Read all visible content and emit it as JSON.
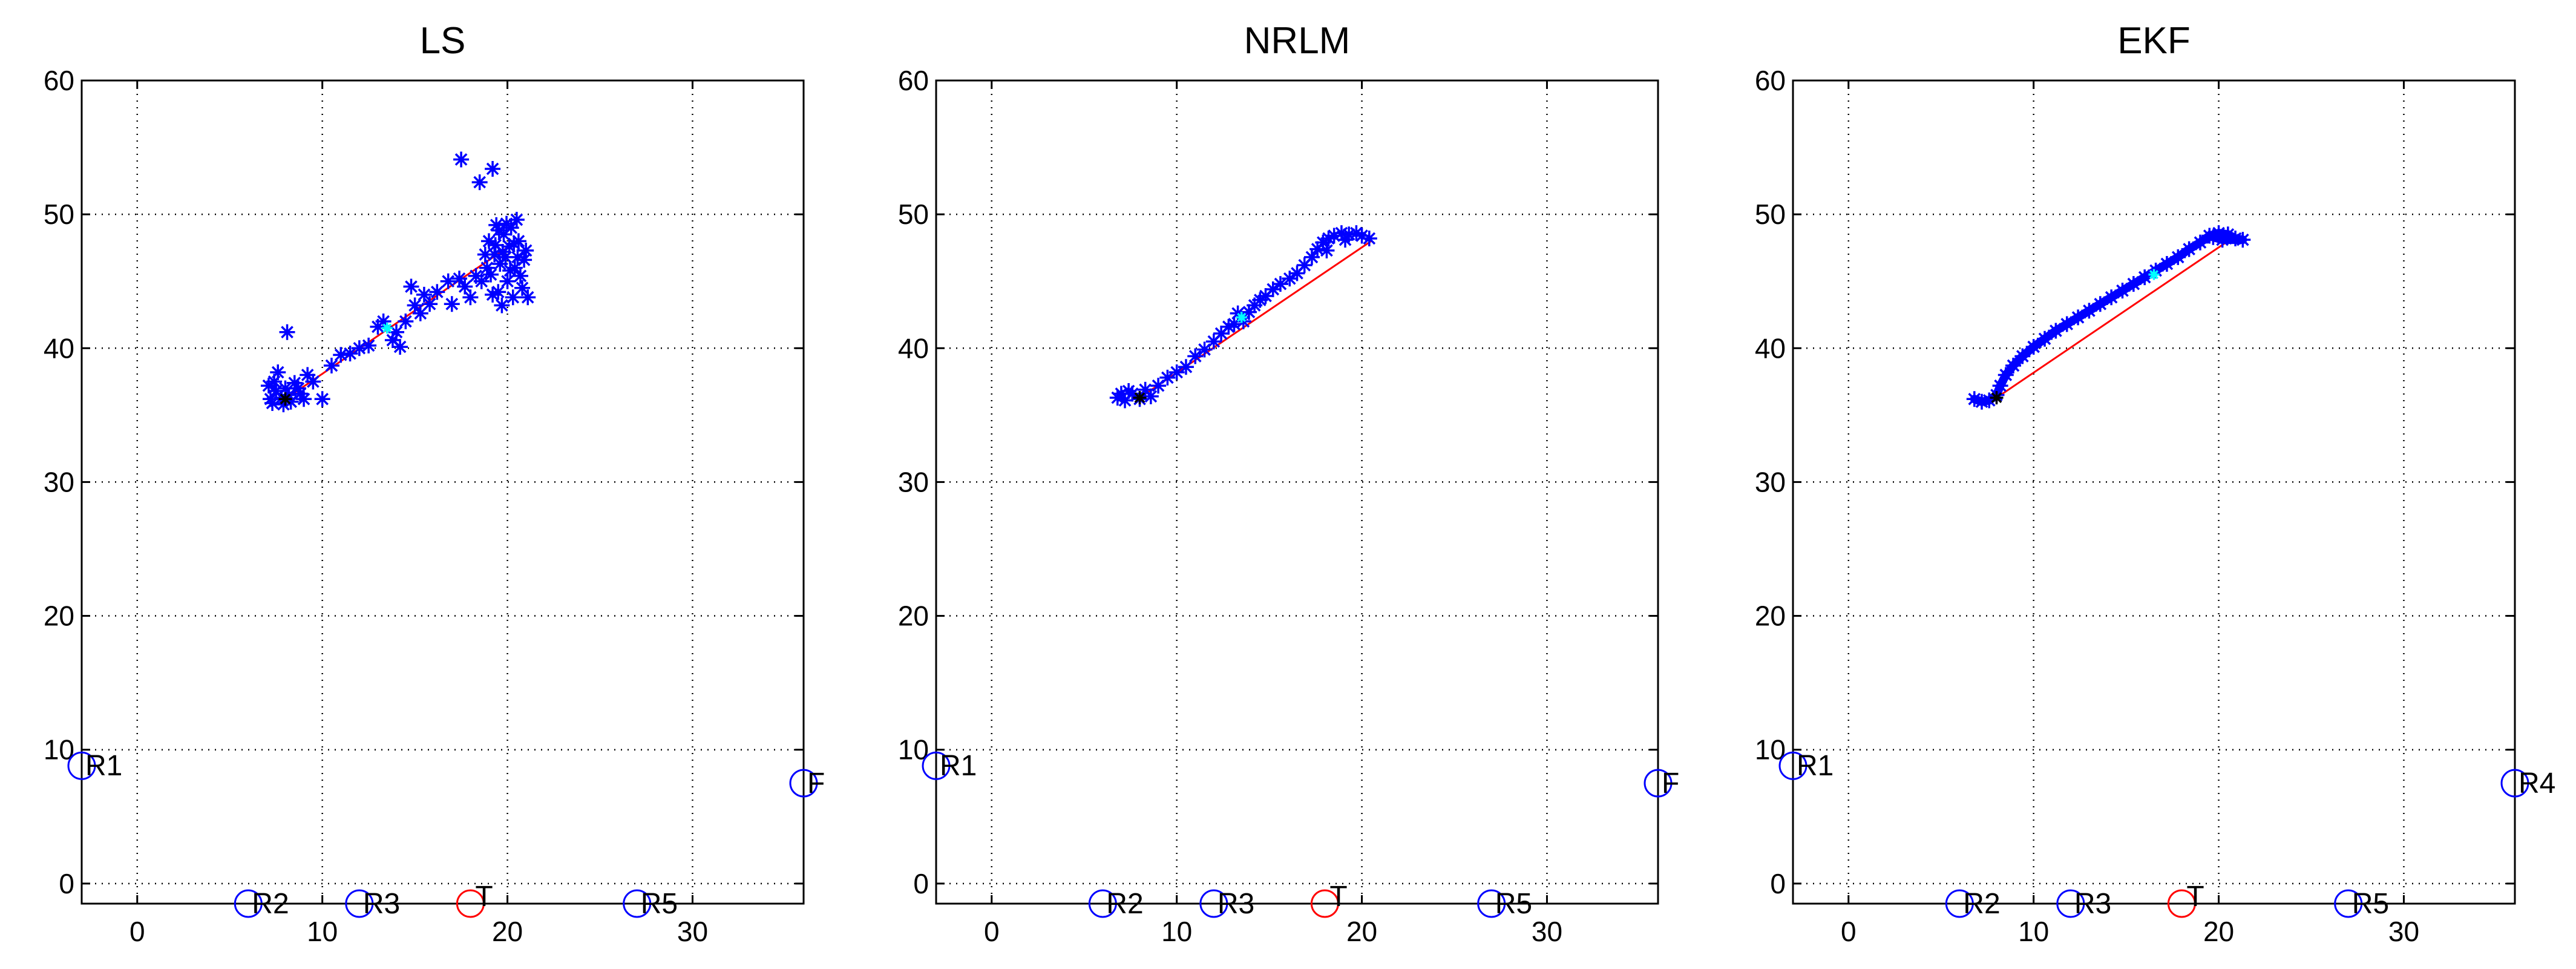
{
  "colors": {
    "points": "#0000ff",
    "true_path": "#ff0000",
    "marker": "#00ffff",
    "receivers": "#0000ff",
    "target": "#ff0000",
    "grid": "#000000",
    "axes": "#000000"
  },
  "chart_data": [
    {
      "type": "scatter",
      "title": "LS",
      "xlim": [
        -3,
        36
      ],
      "ylim": [
        -1.5,
        60
      ],
      "xticks": [
        "0",
        "10",
        "20",
        "30"
      ],
      "yticks": [
        "0",
        "10",
        "20",
        "30",
        "40",
        "50",
        "60"
      ],
      "grid": true,
      "true_path": [
        [
          8,
          36.2
        ],
        [
          20.5,
          48
        ]
      ],
      "marker_point": [
        13.5,
        41.5
      ],
      "estimates": [
        [
          7.2,
          36.2
        ],
        [
          7.5,
          36.8
        ],
        [
          7.8,
          36.3
        ],
        [
          8,
          37
        ],
        [
          8.2,
          36.5
        ],
        [
          7.4,
          37.5
        ],
        [
          7.9,
          35.8
        ],
        [
          8.3,
          36
        ],
        [
          7.1,
          37.2
        ],
        [
          8.5,
          37.4
        ],
        [
          7.6,
          38.2
        ],
        [
          8.1,
          41.2
        ],
        [
          8.7,
          37
        ],
        [
          7.3,
          35.9
        ],
        [
          8.8,
          36.6
        ],
        [
          9.2,
          38
        ],
        [
          9.5,
          37.5
        ],
        [
          9,
          36.2
        ],
        [
          10,
          36.2
        ],
        [
          10.5,
          38.7
        ],
        [
          11,
          39.5
        ],
        [
          11.5,
          39.6
        ],
        [
          12,
          40
        ],
        [
          12.5,
          40.2
        ],
        [
          13,
          41.6
        ],
        [
          13.3,
          42
        ],
        [
          13.8,
          40.6
        ],
        [
          14,
          41.2
        ],
        [
          14.2,
          40.1
        ],
        [
          14.5,
          42
        ],
        [
          14.8,
          44.6
        ],
        [
          15,
          43.2
        ],
        [
          15.3,
          42.6
        ],
        [
          15.5,
          44
        ],
        [
          15.8,
          43.3
        ],
        [
          16.2,
          44.2
        ],
        [
          16.8,
          45
        ],
        [
          17,
          43.3
        ],
        [
          17.4,
          45.2
        ],
        [
          17.7,
          44.6
        ],
        [
          18,
          43.8
        ],
        [
          18.3,
          45.4
        ],
        [
          18.6,
          45
        ],
        [
          18.8,
          47
        ],
        [
          17.5,
          54.1
        ],
        [
          19.2,
          53.4
        ],
        [
          18.5,
          52.4
        ],
        [
          19,
          48
        ],
        [
          19.1,
          45.5
        ],
        [
          19.3,
          47
        ],
        [
          19.4,
          49.2
        ],
        [
          19.5,
          44.2
        ],
        [
          19.6,
          46.3
        ],
        [
          19.8,
          48.5
        ],
        [
          20,
          45
        ],
        [
          20.2,
          49
        ],
        [
          20.4,
          46
        ],
        [
          20.6,
          48
        ],
        [
          20.8,
          44.5
        ],
        [
          21,
          47.3
        ],
        [
          19.7,
          43.2
        ],
        [
          20.1,
          47.6
        ],
        [
          20.3,
          43.8
        ],
        [
          20.5,
          49.6
        ],
        [
          20.7,
          45.4
        ],
        [
          19.2,
          44
        ],
        [
          19.9,
          46.8
        ],
        [
          20.9,
          46.6
        ],
        [
          21.1,
          43.8
        ],
        [
          18.9,
          46
        ],
        [
          19.35,
          47.7
        ],
        [
          19.75,
          47.2
        ],
        [
          20.15,
          45.8
        ],
        [
          20.55,
          46.8
        ],
        [
          19.55,
          48.8
        ],
        [
          19.95,
          49.3
        ],
        [
          20.35,
          47.8
        ]
      ],
      "receivers": [
        {
          "label": "R1",
          "x": -3,
          "y": 8.8
        },
        {
          "label": "R2",
          "x": 6,
          "y": -1.5
        },
        {
          "label": "R3",
          "x": 12,
          "y": -1.5
        },
        {
          "label": "R5",
          "x": 27,
          "y": -1.5
        },
        {
          "label": "F",
          "x": 36,
          "y": 7.5
        }
      ],
      "target": {
        "label": "T",
        "x": 18,
        "y": -1.5
      }
    },
    {
      "type": "scatter",
      "title": "NRLM",
      "xlim": [
        -3,
        36
      ],
      "ylim": [
        -1.5,
        60
      ],
      "xticks": [
        "0",
        "10",
        "20",
        "30"
      ],
      "yticks": [
        "0",
        "10",
        "20",
        "30",
        "40",
        "50",
        "60"
      ],
      "grid": true,
      "true_path": [
        [
          8,
          36.3
        ],
        [
          20.5,
          48
        ]
      ],
      "marker_point": [
        13.5,
        42.3
      ],
      "estimates": [
        [
          6.8,
          36.3
        ],
        [
          7.2,
          36.1
        ],
        [
          7.6,
          36.6
        ],
        [
          8,
          36.2
        ],
        [
          8.3,
          36.9
        ],
        [
          8.6,
          36.4
        ],
        [
          7.4,
          36.8
        ],
        [
          7,
          36.6
        ],
        [
          9,
          37.2
        ],
        [
          9.5,
          37.8
        ],
        [
          10,
          38.2
        ],
        [
          10.5,
          38.6
        ],
        [
          11,
          39.4
        ],
        [
          11.5,
          39.9
        ],
        [
          12,
          40.5
        ],
        [
          12.4,
          41.1
        ],
        [
          12.8,
          41.6
        ],
        [
          13.1,
          41.8
        ],
        [
          13.3,
          42.6
        ],
        [
          13.6,
          42
        ],
        [
          13.9,
          42.7
        ],
        [
          14.2,
          43.2
        ],
        [
          14.5,
          43.6
        ],
        [
          14.8,
          43.9
        ],
        [
          15.2,
          44.4
        ],
        [
          15.6,
          44.8
        ],
        [
          16.1,
          45.2
        ],
        [
          16.5,
          45.6
        ],
        [
          16.9,
          46.2
        ],
        [
          17.3,
          46.8
        ],
        [
          17.6,
          47.4
        ],
        [
          17.9,
          47.9
        ],
        [
          18.2,
          48.2
        ],
        [
          18.5,
          48.4
        ],
        [
          18.9,
          48.6
        ],
        [
          19.3,
          48.5
        ],
        [
          19.7,
          48.6
        ],
        [
          20,
          48.4
        ],
        [
          20.4,
          48.2
        ],
        [
          19.1,
          48.1
        ],
        [
          18.1,
          47.3
        ]
      ],
      "receivers": [
        {
          "label": "R1",
          "x": -3,
          "y": 8.8
        },
        {
          "label": "R2",
          "x": 6,
          "y": -1.5
        },
        {
          "label": "R3",
          "x": 12,
          "y": -1.5
        },
        {
          "label": "R5",
          "x": 27,
          "y": -1.5
        },
        {
          "label": "F",
          "x": 36,
          "y": 7.5
        }
      ],
      "target": {
        "label": "T",
        "x": 18,
        "y": -1.5
      }
    },
    {
      "type": "scatter",
      "title": "EKF",
      "xlim": [
        -3,
        36
      ],
      "ylim": [
        -1.5,
        60
      ],
      "xticks": [
        "0",
        "10",
        "20",
        "30"
      ],
      "yticks": [
        "0",
        "10",
        "20",
        "30",
        "40",
        "50",
        "60"
      ],
      "grid": true,
      "true_path": [
        [
          8,
          36.3
        ],
        [
          20.5,
          48
        ]
      ],
      "marker_point": [
        16.5,
        45.5
      ],
      "estimates": [
        [
          6.8,
          36.2
        ],
        [
          7.2,
          36
        ],
        [
          7.6,
          36.1
        ],
        [
          8,
          36.5
        ],
        [
          8.2,
          37.2
        ],
        [
          8.5,
          38
        ],
        [
          8.9,
          38.7
        ],
        [
          9.4,
          39.4
        ],
        [
          10,
          40.1
        ],
        [
          10.6,
          40.7
        ],
        [
          11.2,
          41.3
        ],
        [
          11.8,
          41.8
        ],
        [
          12.4,
          42.3
        ],
        [
          13,
          42.8
        ],
        [
          13.6,
          43.3
        ],
        [
          14.2,
          43.8
        ],
        [
          14.8,
          44.3
        ],
        [
          15.4,
          44.8
        ],
        [
          16,
          45.3
        ],
        [
          16.6,
          45.8
        ],
        [
          17.2,
          46.3
        ],
        [
          17.8,
          46.8
        ],
        [
          18.4,
          47.4
        ],
        [
          19,
          47.9
        ],
        [
          19.5,
          48.4
        ],
        [
          20,
          48.6
        ],
        [
          20.5,
          48.5
        ],
        [
          20.9,
          48.2
        ],
        [
          21.3,
          48.1
        ],
        [
          20.2,
          48.1
        ],
        [
          19.7,
          48.3
        ]
      ],
      "receivers": [
        {
          "label": "R1",
          "x": -3,
          "y": 8.8
        },
        {
          "label": "R2",
          "x": 6,
          "y": -1.5
        },
        {
          "label": "R3",
          "x": 12,
          "y": -1.5
        },
        {
          "label": "R5",
          "x": 27,
          "y": -1.5
        },
        {
          "label": "R4",
          "x": 36,
          "y": 7.5
        }
      ],
      "target": {
        "label": "T",
        "x": 18,
        "y": -1.5
      }
    }
  ]
}
